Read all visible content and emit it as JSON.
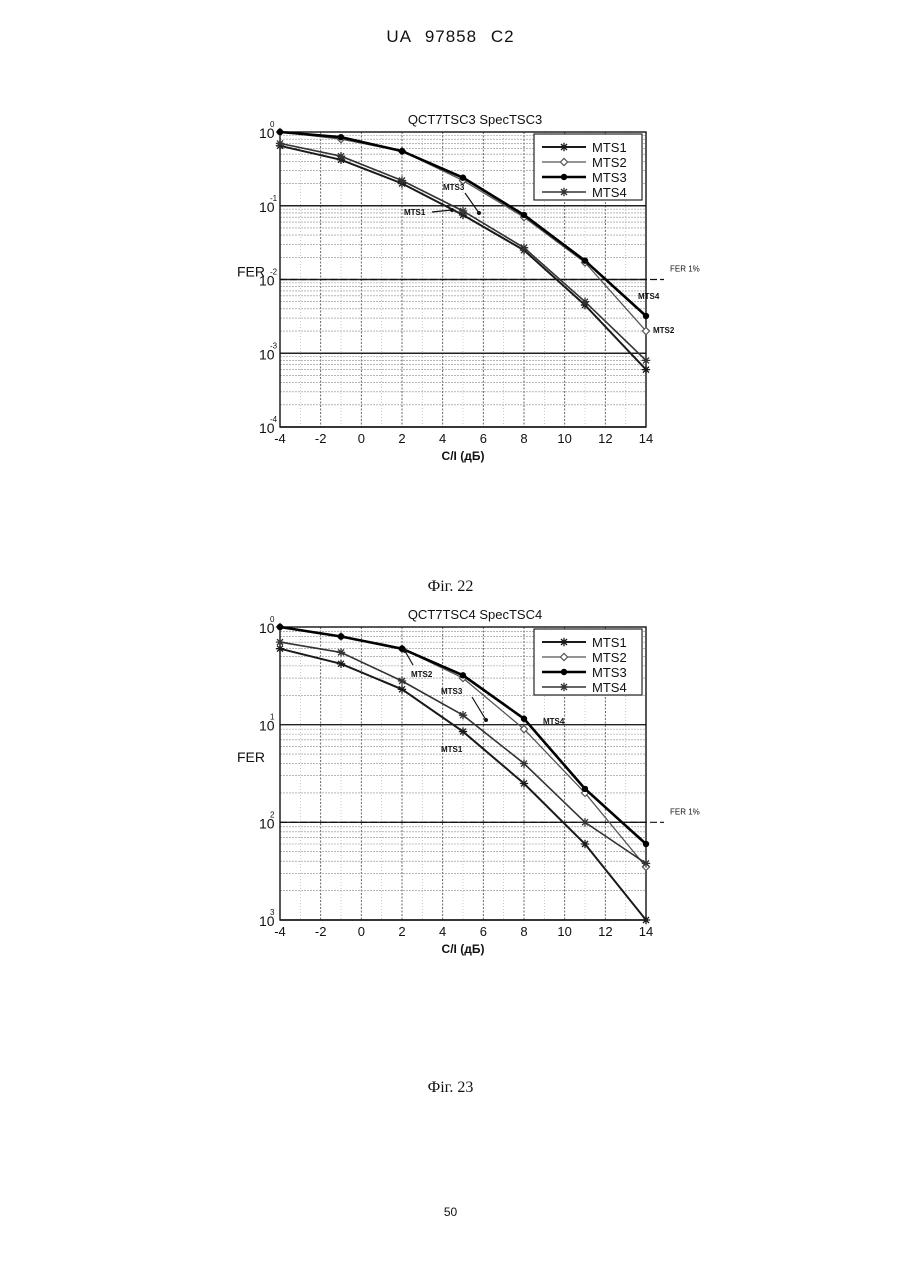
{
  "page": {
    "header": "UA 97858 C2",
    "page_number": "50",
    "captions": [
      "Фіг. 22",
      "Фіг. 23"
    ]
  },
  "chart_data": [
    {
      "type": "line",
      "title": "QCT7TSC3 SpecTSC3",
      "xlabel": "C/I (дБ)",
      "ylabel": "FER",
      "log_y": true,
      "xlim": [
        -4,
        14
      ],
      "ylim": [
        0.0001,
        1
      ],
      "x_ticks": [
        "-4",
        "-2",
        "0",
        "2",
        "4",
        "6",
        "8",
        "10",
        "12",
        "14"
      ],
      "y_ticks": [
        {
          "base": "10",
          "exp": "0"
        },
        {
          "base": "10",
          "exp": "-1"
        },
        {
          "base": "10",
          "exp": "-2"
        },
        {
          "base": "10",
          "exp": "-3"
        },
        {
          "base": "10",
          "exp": "-4"
        }
      ],
      "grid": true,
      "legend_position": "top-right",
      "reference_line": {
        "label": "FER 1%",
        "y": 0.01
      },
      "x": [
        -4,
        -1,
        2,
        5,
        8,
        11,
        14
      ],
      "series": [
        {
          "name": "MTS1",
          "marker": "star",
          "color": "#1a1a1a",
          "width": 2.0,
          "values": [
            0.65,
            0.42,
            0.2,
            0.075,
            0.025,
            0.0045,
            0.0006
          ]
        },
        {
          "name": "MTS2",
          "marker": "diamond",
          "color": "#555555",
          "width": 1.3,
          "values": [
            1.0,
            0.8,
            0.55,
            0.22,
            0.07,
            0.017,
            0.002
          ]
        },
        {
          "name": "MTS3",
          "marker": "dot",
          "color": "#000000",
          "width": 2.6,
          "values": [
            1.0,
            0.85,
            0.55,
            0.24,
            0.075,
            0.018,
            0.0032
          ]
        },
        {
          "name": "MTS4",
          "marker": "star",
          "color": "#333333",
          "width": 1.6,
          "values": [
            0.7,
            0.47,
            0.22,
            0.085,
            0.027,
            0.005,
            0.0008
          ]
        }
      ],
      "annotations": [
        "MTS3",
        "MTS1",
        "MTS4",
        "MTS2"
      ]
    },
    {
      "type": "line",
      "title": "QCT7TSC4 SpecTSC4",
      "xlabel": "C/I (дБ)",
      "ylabel": "FER",
      "log_y": true,
      "xlim": [
        -4,
        14
      ],
      "ylim": [
        0.001,
        1
      ],
      "x_ticks": [
        "-4",
        "-2",
        "0",
        "2",
        "4",
        "6",
        "8",
        "10",
        "12",
        "14"
      ],
      "y_ticks": [
        {
          "base": "10",
          "exp": "0"
        },
        {
          "base": "10",
          "exp": "1"
        },
        {
          "base": "10",
          "exp": "2"
        },
        {
          "base": "10",
          "exp": "3"
        }
      ],
      "grid": true,
      "legend_position": "top-right",
      "reference_line": {
        "label": "FER 1%",
        "y": 0.01
      },
      "x": [
        -4,
        -1,
        2,
        5,
        8,
        11,
        14
      ],
      "series": [
        {
          "name": "MTS1",
          "marker": "star",
          "color": "#1a1a1a",
          "width": 2.0,
          "values": [
            0.6,
            0.42,
            0.23,
            0.085,
            0.025,
            0.006,
            0.001
          ]
        },
        {
          "name": "MTS2",
          "marker": "diamond",
          "color": "#555555",
          "width": 1.3,
          "values": [
            1.0,
            0.8,
            0.6,
            0.3,
            0.09,
            0.02,
            0.0035
          ]
        },
        {
          "name": "MTS3",
          "marker": "dot",
          "color": "#000000",
          "width": 2.6,
          "values": [
            1.0,
            0.8,
            0.6,
            0.32,
            0.115,
            0.022,
            0.006
          ]
        },
        {
          "name": "MTS4",
          "marker": "star",
          "color": "#333333",
          "width": 1.6,
          "values": [
            0.7,
            0.55,
            0.28,
            0.125,
            0.04,
            0.01,
            0.0038
          ]
        }
      ],
      "annotations": [
        "MTS2",
        "MTS3",
        "MTS4",
        "MTS1"
      ]
    }
  ]
}
